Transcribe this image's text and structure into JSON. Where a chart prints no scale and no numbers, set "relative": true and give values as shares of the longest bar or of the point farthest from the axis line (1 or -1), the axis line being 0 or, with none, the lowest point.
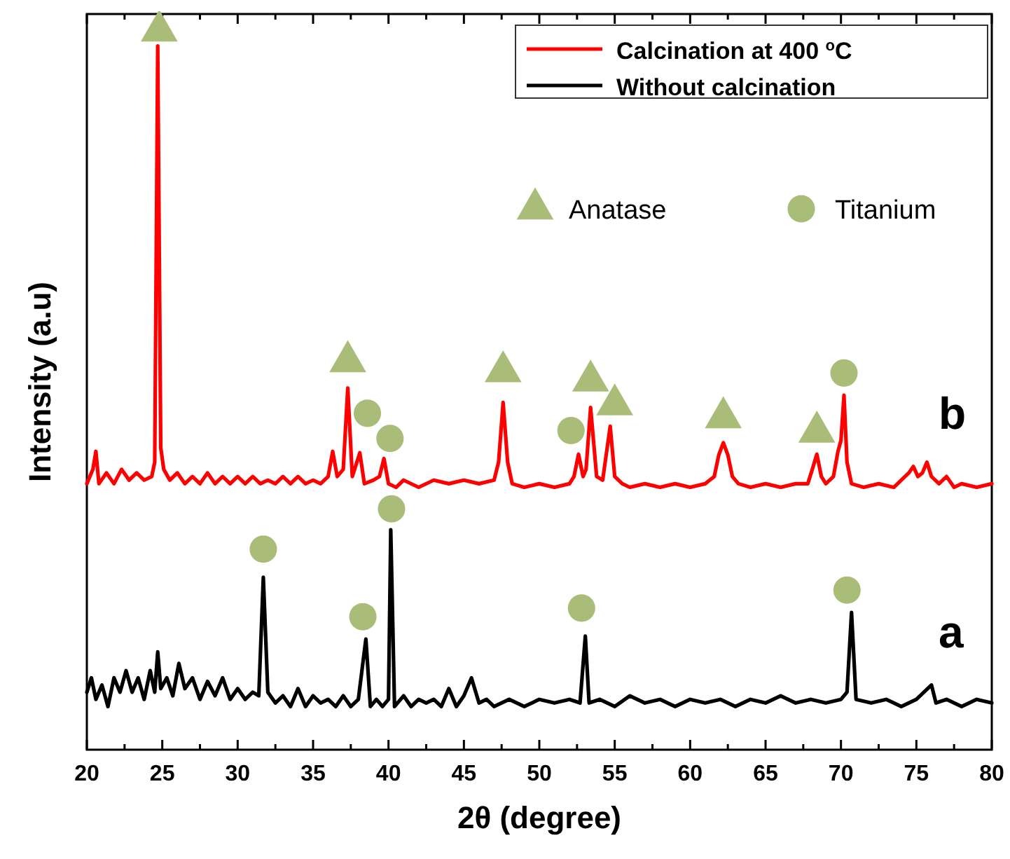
{
  "chart_data": {
    "type": "line",
    "relative": true,
    "xlabel": "2θ (degree)",
    "ylabel": "Intensity (a.u)",
    "xlim": [
      20,
      80
    ],
    "xticks": [
      20,
      {
        "value": 22.5,
        "label": null
      },
      25,
      {
        "value": 27.5,
        "label": null
      },
      30,
      {
        "value": 32.5,
        "label": null
      },
      35,
      {
        "value": 37.5,
        "label": null
      },
      40,
      {
        "value": 42.5,
        "label": null
      },
      45,
      {
        "value": 47.5,
        "label": null
      },
      50,
      {
        "value": 52.5,
        "label": null
      },
      55,
      {
        "value": 57.5,
        "label": null
      },
      60,
      {
        "value": 62.5,
        "label": null
      },
      65,
      {
        "value": 67.5,
        "label": null
      },
      70,
      {
        "value": 72.5,
        "label": null
      },
      75,
      {
        "value": 77.5,
        "label": null
      },
      80
    ],
    "tick_labels": "x",
    "grid": false,
    "legend": "top right",
    "line_style": "solid",
    "series": [
      {
        "name": "Calcination at 400 $^{o}$C",
        "color": "#ff0000",
        "x": [
          20.0,
          20.4,
          20.6,
          20.8,
          21.3,
          21.8,
          22.3,
          22.8,
          23.3,
          23.8,
          24.3,
          24.5,
          24.7,
          24.9,
          25.1,
          25.5,
          26.0,
          26.5,
          27.0,
          27.5,
          28.0,
          28.5,
          29.0,
          29.5,
          30.0,
          30.5,
          31.0,
          31.5,
          32.0,
          32.5,
          33.0,
          33.5,
          34.0,
          34.5,
          35.0,
          35.5,
          36.0,
          36.3,
          36.6,
          37.0,
          37.3,
          37.6,
          38.1,
          38.4,
          39.0,
          39.4,
          39.7,
          40.0,
          40.5,
          41.0,
          42.0,
          43.0,
          44.0,
          45.0,
          46.0,
          47.0,
          47.3,
          47.6,
          47.9,
          48.2,
          49.0,
          50.0,
          51.0,
          52.0,
          52.3,
          52.6,
          52.9,
          53.1,
          53.4,
          53.8,
          54.2,
          54.7,
          55.0,
          55.5,
          56.0,
          57.0,
          58.0,
          59.0,
          60.0,
          61.0,
          61.6,
          61.9,
          62.2,
          62.5,
          62.8,
          63.2,
          64.0,
          65.0,
          66.0,
          67.0,
          67.8,
          68.1,
          68.4,
          68.7,
          69.0,
          69.5,
          69.8,
          70.0,
          70.2,
          70.4,
          70.7,
          71.5,
          72.5,
          73.5,
          74.5,
          74.8,
          75.1,
          75.4,
          75.7,
          76.0,
          76.5,
          77.0,
          77.5,
          78.0,
          79.0,
          80.0
        ],
        "values": [
          0.37,
          0.39,
          0.415,
          0.37,
          0.385,
          0.37,
          0.39,
          0.375,
          0.385,
          0.375,
          0.38,
          0.4,
          0.979,
          0.42,
          0.39,
          0.375,
          0.385,
          0.37,
          0.38,
          0.37,
          0.385,
          0.37,
          0.38,
          0.37,
          0.38,
          0.37,
          0.38,
          0.37,
          0.375,
          0.37,
          0.38,
          0.37,
          0.38,
          0.37,
          0.375,
          0.37,
          0.38,
          0.415,
          0.38,
          0.39,
          0.503,
          0.38,
          0.413,
          0.37,
          0.375,
          0.38,
          0.405,
          0.37,
          0.365,
          0.375,
          0.365,
          0.375,
          0.37,
          0.375,
          0.37,
          0.375,
          0.4,
          0.483,
          0.4,
          0.37,
          0.365,
          0.37,
          0.365,
          0.37,
          0.38,
          0.411,
          0.38,
          0.39,
          0.476,
          0.38,
          0.375,
          0.45,
          0.38,
          0.37,
          0.365,
          0.37,
          0.365,
          0.37,
          0.365,
          0.37,
          0.38,
          0.41,
          0.427,
          0.41,
          0.38,
          0.37,
          0.365,
          0.37,
          0.365,
          0.37,
          0.37,
          0.39,
          0.411,
          0.38,
          0.37,
          0.38,
          0.415,
          0.43,
          0.493,
          0.4,
          0.37,
          0.365,
          0.37,
          0.365,
          0.385,
          0.394,
          0.38,
          0.385,
          0.4,
          0.38,
          0.37,
          0.38,
          0.365,
          0.37,
          0.365,
          0.37
        ]
      },
      {
        "name": "Without calcination",
        "color": "#000000",
        "x": [
          20.0,
          20.3,
          20.6,
          21.0,
          21.4,
          21.8,
          22.2,
          22.6,
          23.0,
          23.4,
          23.8,
          24.2,
          24.5,
          24.7,
          24.9,
          25.3,
          25.7,
          26.1,
          26.5,
          27.0,
          27.5,
          28.0,
          28.5,
          29.0,
          29.5,
          30.0,
          30.5,
          31.0,
          31.4,
          31.7,
          32.0,
          32.5,
          33.0,
          33.5,
          34.0,
          34.5,
          35.0,
          35.5,
          36.0,
          36.5,
          37.0,
          37.5,
          38.0,
          38.5,
          38.8,
          39.2,
          39.6,
          40.0,
          40.15,
          40.4,
          41.0,
          41.5,
          42.0,
          42.5,
          43.0,
          43.5,
          44.0,
          44.5,
          45.0,
          45.5,
          46.0,
          46.5,
          47.0,
          48.0,
          49.0,
          50.0,
          51.0,
          52.0,
          52.7,
          53.05,
          53.3,
          54.0,
          55.0,
          56.0,
          57.0,
          58.0,
          59.0,
          60.0,
          61.0,
          62.0,
          63.0,
          64.0,
          65.0,
          66.0,
          67.0,
          68.0,
          69.0,
          70.0,
          70.4,
          70.7,
          71.0,
          72.0,
          73.0,
          74.0,
          75.0,
          76.0,
          76.3,
          77.0,
          78.0,
          79.0,
          80.0
        ],
        "values": [
          0.08,
          0.1,
          0.07,
          0.09,
          0.06,
          0.1,
          0.08,
          0.11,
          0.08,
          0.1,
          0.07,
          0.11,
          0.08,
          0.136,
          0.085,
          0.1,
          0.075,
          0.12,
          0.085,
          0.1,
          0.07,
          0.095,
          0.075,
          0.1,
          0.07,
          0.085,
          0.07,
          0.08,
          0.075,
          0.24,
          0.08,
          0.065,
          0.075,
          0.06,
          0.085,
          0.06,
          0.075,
          0.065,
          0.07,
          0.06,
          0.075,
          0.06,
          0.07,
          0.154,
          0.06,
          0.07,
          0.06,
          0.07,
          0.306,
          0.06,
          0.075,
          0.06,
          0.07,
          0.065,
          0.07,
          0.06,
          0.085,
          0.06,
          0.075,
          0.1,
          0.065,
          0.07,
          0.06,
          0.07,
          0.06,
          0.07,
          0.065,
          0.07,
          0.065,
          0.158,
          0.065,
          0.07,
          0.06,
          0.075,
          0.065,
          0.07,
          0.06,
          0.07,
          0.065,
          0.07,
          0.06,
          0.07,
          0.065,
          0.075,
          0.065,
          0.07,
          0.065,
          0.07,
          0.08,
          0.191,
          0.07,
          0.065,
          0.07,
          0.06,
          0.07,
          0.09,
          0.065,
          0.07,
          0.06,
          0.07,
          0.065
        ]
      },
      {
        "name": "Anatase",
        "type": "scatter",
        "marker": "triangle",
        "color": "#a9bc78",
        "x": [
          24.8,
          37.3,
          47.6,
          53.4,
          55.0,
          62.2,
          68.4
        ],
        "values": [
          1.0,
          0.54,
          0.526,
          0.513,
          0.48,
          0.462,
          0.442
        ]
      },
      {
        "name": "Titanium",
        "type": "scatter",
        "marker": "circle",
        "color": "#a9bc78",
        "x": [
          38.6,
          40.1,
          52.1,
          70.2,
          31.7,
          38.3,
          40.2,
          52.8,
          70.4
        ],
        "values": [
          0.468,
          0.433,
          0.444,
          0.524,
          0.279,
          0.185,
          0.335,
          0.197,
          0.222
        ]
      }
    ],
    "annotations": [
      "b",
      "a"
    ]
  }
}
